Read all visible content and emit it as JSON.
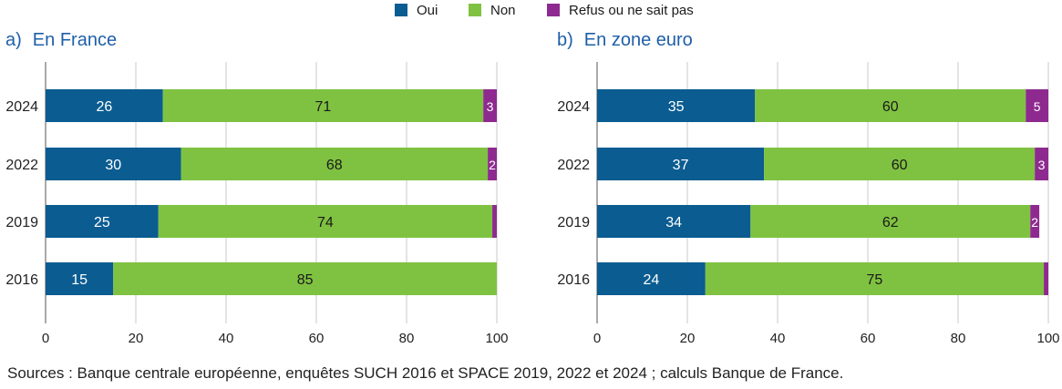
{
  "legend": [
    {
      "label": "Oui",
      "color": "#0b5c91"
    },
    {
      "label": "Non",
      "color": "#7fc241"
    },
    {
      "label": "Refus ou ne sait pas",
      "color": "#8e2a8f"
    }
  ],
  "panels": {
    "a": {
      "letter": "a)",
      "title": "En France"
    },
    "b": {
      "letter": "b)",
      "title": "En zone euro"
    }
  },
  "source": "Sources : Banque centrale européenne, enquêtes SUCH 2016 et SPACE 2019, 2022 et 2024 ; calculs Banque de France.",
  "chart_data": [
    {
      "type": "bar",
      "orientation": "horizontal",
      "stacked": true,
      "title": "En France",
      "categories": [
        "2024",
        "2022",
        "2019",
        "2016"
      ],
      "series": [
        {
          "name": "Oui",
          "values": [
            26,
            30,
            25,
            15
          ],
          "color": "#0b5c91"
        },
        {
          "name": "Non",
          "values": [
            71,
            68,
            74,
            85
          ],
          "color": "#7fc241"
        },
        {
          "name": "Refus ou ne sait pas",
          "values": [
            3,
            2,
            1,
            0
          ],
          "color": "#8e2a8f"
        }
      ],
      "value_labels": [
        [
          "26",
          "71",
          "3"
        ],
        [
          "30",
          "68",
          "2"
        ],
        [
          "25",
          "74",
          ""
        ],
        [
          "15",
          "85",
          ""
        ]
      ],
      "xlim": [
        0,
        100
      ],
      "xticks": [
        0,
        20,
        40,
        60,
        80,
        100
      ],
      "grid": true,
      "legend": "top"
    },
    {
      "type": "bar",
      "orientation": "horizontal",
      "stacked": true,
      "title": "En zone euro",
      "categories": [
        "2024",
        "2022",
        "2019",
        "2016"
      ],
      "series": [
        {
          "name": "Oui",
          "values": [
            35,
            37,
            34,
            24
          ],
          "color": "#0b5c91"
        },
        {
          "name": "Non",
          "values": [
            60,
            60,
            62,
            75
          ],
          "color": "#7fc241"
        },
        {
          "name": "Refus ou ne sait pas",
          "values": [
            5,
            3,
            2,
            1
          ],
          "color": "#8e2a8f"
        }
      ],
      "value_labels": [
        [
          "35",
          "60",
          "5"
        ],
        [
          "37",
          "60",
          "3"
        ],
        [
          "34",
          "62",
          "2"
        ],
        [
          "24",
          "75",
          ""
        ]
      ],
      "xlim": [
        0,
        100
      ],
      "xticks": [
        0,
        20,
        40,
        60,
        80,
        100
      ],
      "grid": true,
      "legend": "top"
    }
  ]
}
